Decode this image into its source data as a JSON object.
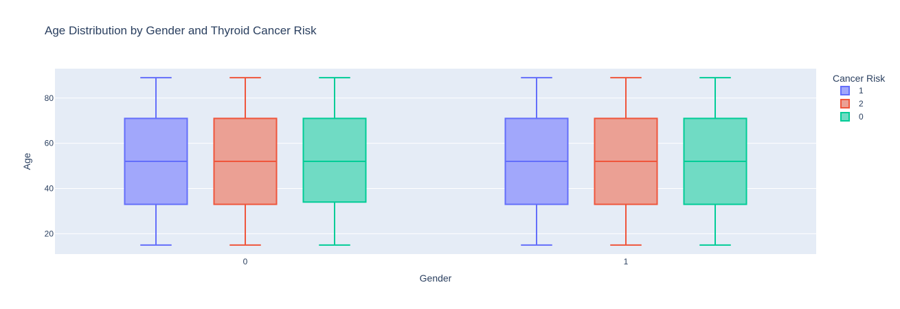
{
  "chart_data": {
    "type": "box",
    "title": "Age Distribution by Gender and Thyroid Cancer Risk",
    "xlabel": "Gender",
    "ylabel": "Age",
    "categories": [
      "0",
      "1"
    ],
    "ylim": [
      11,
      93
    ],
    "yticks": [
      20,
      40,
      60,
      80
    ],
    "grid": true,
    "legend": {
      "title": "Cancer Risk",
      "placement": "top-right"
    },
    "series": [
      {
        "name": "1",
        "color": "#636efa",
        "fill": "#a1a7fb",
        "boxes": [
          {
            "min": 15,
            "q1": 33,
            "median": 52,
            "q3": 71,
            "max": 89
          },
          {
            "min": 15,
            "q1": 33,
            "median": 52,
            "q3": 71,
            "max": 89
          }
        ]
      },
      {
        "name": "2",
        "color": "#ef553b",
        "fill": "#eba094",
        "boxes": [
          {
            "min": 15,
            "q1": 33,
            "median": 52,
            "q3": 71,
            "max": 89
          },
          {
            "min": 15,
            "q1": 33,
            "median": 52,
            "q3": 71,
            "max": 89
          }
        ]
      },
      {
        "name": "0",
        "color": "#00cc96",
        "fill": "#70dbc4",
        "boxes": [
          {
            "min": 15,
            "q1": 34,
            "median": 52,
            "q3": 71,
            "max": 89
          },
          {
            "min": 15,
            "q1": 33,
            "median": 52,
            "q3": 71,
            "max": 89
          }
        ]
      }
    ]
  }
}
